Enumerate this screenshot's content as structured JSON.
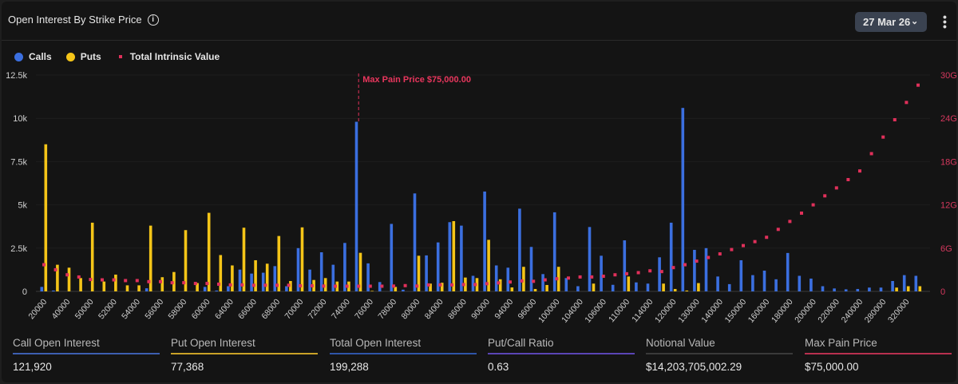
{
  "header": {
    "title": "Open Interest By Strike Price",
    "info_icon": "info-circle-icon",
    "expiry_select": "27 Mar 26",
    "more_icon": "vertical-dots-icon"
  },
  "legend": [
    {
      "label": "Calls",
      "color": "#3b6fe0"
    },
    {
      "label": "Puts",
      "color": "#f5c518"
    },
    {
      "label": "Total Intrinsic Value",
      "color": "#e0305a"
    }
  ],
  "chart_data": {
    "type": "bar",
    "title": "",
    "xlabel": "",
    "ylabel": "",
    "ylim": [
      0,
      12500
    ],
    "y_ticks": [
      "0",
      "2.5k",
      "5k",
      "7.5k",
      "10k",
      "12.5k"
    ],
    "y2lim": [
      0,
      30
    ],
    "y2_unit": "G",
    "y2_ticks": [
      "0",
      "6G",
      "12G",
      "18G",
      "24G",
      "30G"
    ],
    "grid": true,
    "legend_position": "top-left",
    "annotation": {
      "label": "Max Pain Price $75,000.00",
      "category_index": 27
    },
    "categories": [
      "20000",
      "",
      "40000",
      "",
      "50000",
      "",
      "52000",
      "",
      "54000",
      "",
      "56000",
      "",
      "58000",
      "",
      "60000",
      "",
      "64000",
      "",
      "66000",
      "",
      "68000",
      "",
      "70000",
      "",
      "72000",
      "",
      "74000",
      "",
      "76000",
      "",
      "78000",
      "",
      "80000",
      "",
      "84000",
      "",
      "86000",
      "",
      "90000",
      "",
      "94000",
      "",
      "96000",
      "",
      "100000",
      "",
      "104000",
      "",
      "106000",
      "",
      "110000",
      "",
      "114000",
      "",
      "120000",
      "",
      "130000",
      "",
      "140000",
      "",
      "150000",
      "",
      "160000",
      "",
      "180000",
      "",
      "200000",
      "",
      "220000",
      "",
      "240000",
      "",
      "280000",
      "",
      "320000",
      ""
    ],
    "series": [
      {
        "name": "Calls",
        "type": "bar",
        "axis": "left",
        "color": "#3b6fe0",
        "values": [
          260,
          50,
          0,
          0,
          0,
          0,
          0,
          0,
          0,
          180,
          0,
          0,
          0,
          0,
          260,
          50,
          300,
          1260,
          1030,
          1080,
          1460,
          300,
          2500,
          1260,
          2260,
          1540,
          2800,
          9800,
          1620,
          540,
          3900,
          100,
          5660,
          2080,
          2830,
          4000,
          3800,
          900,
          5770,
          1500,
          1370,
          4780,
          2570,
          1000,
          4570,
          770,
          300,
          3720,
          2060,
          380,
          2950,
          520,
          450,
          1970,
          3970,
          10600,
          2400,
          2500,
          860,
          420,
          1800,
          940,
          1200,
          700,
          2220,
          900,
          740,
          300,
          170,
          120,
          140,
          220,
          220,
          600,
          940,
          900
        ]
      },
      {
        "name": "Puts",
        "type": "bar",
        "axis": "left",
        "color": "#f5c518",
        "values": [
          8500,
          1540,
          1370,
          770,
          3970,
          570,
          970,
          350,
          350,
          3800,
          820,
          1120,
          3540,
          480,
          4540,
          2100,
          1500,
          3680,
          1800,
          1600,
          3200,
          600,
          3700,
          660,
          770,
          570,
          570,
          2230,
          30,
          0,
          260,
          0,
          2060,
          450,
          500,
          4060,
          800,
          770,
          2980,
          700,
          230,
          1420,
          140,
          370,
          1420,
          0,
          0,
          450,
          0,
          0,
          860,
          0,
          0,
          450,
          140,
          50,
          480,
          0,
          0,
          0,
          0,
          0,
          0,
          0,
          0,
          0,
          0,
          0,
          0,
          0,
          0,
          0,
          0,
          220,
          300,
          300
        ]
      },
      {
        "name": "Total Intrinsic Value",
        "type": "scatter",
        "axis": "right",
        "unit": "G",
        "color": "#e0305a",
        "values": [
          3.7,
          3.0,
          2.3,
          2.0,
          1.65,
          1.6,
          1.6,
          1.5,
          1.5,
          1.35,
          1.35,
          1.2,
          1.2,
          1.1,
          1.1,
          1.0,
          0.9,
          0.9,
          0.85,
          0.85,
          0.85,
          0.85,
          0.78,
          0.78,
          0.74,
          0.72,
          0.72,
          0.72,
          0.72,
          0.72,
          0.74,
          0.8,
          0.74,
          0.9,
          0.9,
          0.9,
          0.95,
          0.95,
          1.07,
          1.18,
          1.3,
          1.45,
          1.4,
          1.6,
          1.75,
          1.85,
          2.0,
          2.0,
          2.1,
          2.3,
          2.45,
          2.6,
          2.85,
          2.75,
          3.3,
          3.7,
          4.2,
          4.7,
          5.2,
          5.8,
          6.35,
          6.9,
          7.5,
          8.6,
          9.7,
          10.85,
          12.0,
          13.25,
          14.35,
          15.5,
          16.7,
          19.1,
          21.4,
          23.8,
          26.2,
          28.6
        ]
      }
    ]
  },
  "stats": [
    {
      "label": "Call Open Interest",
      "value": "121,920",
      "color": "#3d5fb0"
    },
    {
      "label": "Put Open Interest",
      "value": "77,368",
      "color": "#c9a227"
    },
    {
      "label": "Total Open Interest",
      "value": "199,288",
      "color": "#2f55a8"
    },
    {
      "label": "Put/Call Ratio",
      "value": "0.63",
      "color": "#5a45b5"
    },
    {
      "label": "Notional Value",
      "value": "$14,203,705,002.29",
      "color": "#3a3a3a"
    },
    {
      "label": "Max Pain Price",
      "value": "$75,000.00",
      "color": "#b8304f"
    }
  ]
}
